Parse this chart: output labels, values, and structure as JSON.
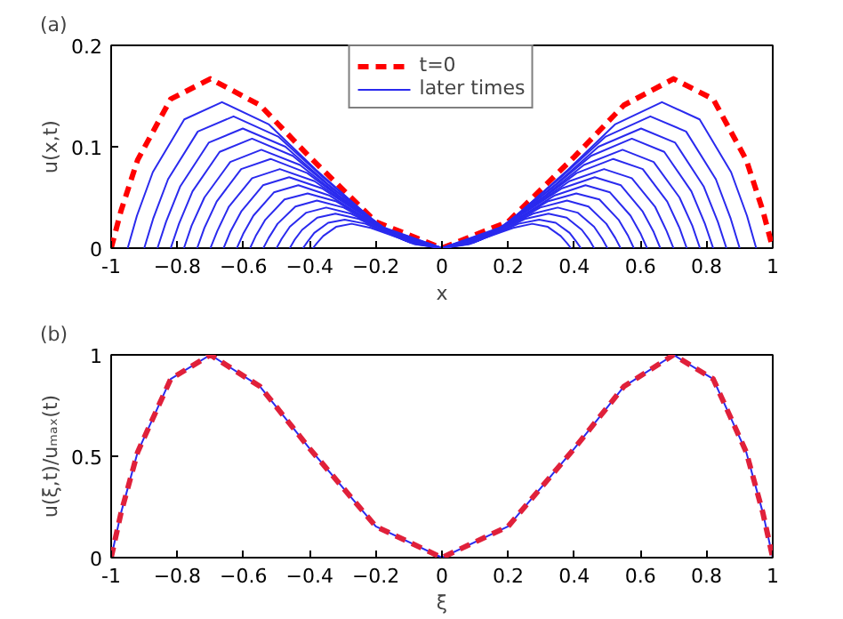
{
  "chart_data": [
    {
      "type": "line",
      "title": "(a)",
      "xlabel": "x",
      "ylabel": "u(x,t)",
      "xlim": [
        -1,
        1
      ],
      "ylim": [
        0,
        0.2
      ],
      "xticks": [
        -1,
        {
          "value": -0.8,
          "label": "−0.8"
        },
        {
          "value": -0.6,
          "label": "−0.6"
        },
        {
          "value": -0.4,
          "label": "−0.4"
        },
        {
          "value": -0.2,
          "label": "−0.2"
        },
        0,
        0.2,
        0.4,
        0.6,
        0.8,
        1
      ],
      "yticks": [
        0,
        0.1,
        0.2
      ],
      "grid": false,
      "legend": "top",
      "marker": "none",
      "series": [
        {
          "name": "t=0",
          "color": "#ff0000",
          "line_style": "dashed",
          "x": [
            -1,
            -0.97,
            -0.92,
            -0.82,
            -0.7,
            -0.55,
            -0.4,
            -0.2,
            0,
            0.2,
            0.4,
            0.55,
            0.7,
            0.82,
            0.92,
            0.97,
            1
          ],
          "values": [
            0,
            0.037,
            0.087,
            0.147,
            0.167,
            0.141,
            0.09,
            0.026,
            0,
            0.026,
            0.09,
            0.141,
            0.167,
            0.147,
            0.087,
            0.037,
            0
          ]
        },
        {
          "name": "later times",
          "color": "#2a2aee",
          "line_style": "solid",
          "x": [
            -0.95,
            -0.922,
            -0.874,
            -0.779,
            -0.665,
            -0.523,
            -0.38,
            -0.19,
            0,
            0.19,
            0.38,
            0.523,
            0.665,
            0.779,
            0.874,
            0.922,
            0.95
          ],
          "values": [
            0,
            0.032,
            0.075,
            0.127,
            0.144,
            0.122,
            0.077,
            0.022,
            0,
            0.022,
            0.077,
            0.122,
            0.144,
            0.127,
            0.075,
            0.032,
            0
          ]
        },
        {
          "color": "#2a2aee",
          "line_style": "solid",
          "x": [
            -0.9,
            -0.873,
            -0.828,
            -0.738,
            -0.63,
            -0.495,
            -0.36,
            -0.18,
            0,
            0.18,
            0.36,
            0.495,
            0.63,
            0.738,
            0.828,
            0.873,
            0.9
          ],
          "values": [
            0,
            0.029,
            0.068,
            0.115,
            0.13,
            0.11,
            0.07,
            0.02,
            0,
            0.02,
            0.07,
            0.11,
            0.13,
            0.115,
            0.068,
            0.029,
            0
          ]
        },
        {
          "color": "#2a2aee",
          "line_style": "solid",
          "x": [
            -0.86,
            -0.834,
            -0.791,
            -0.705,
            -0.602,
            -0.473,
            -0.344,
            -0.172,
            0,
            0.172,
            0.344,
            0.473,
            0.602,
            0.705,
            0.791,
            0.834,
            0.86
          ],
          "values": [
            0,
            0.026,
            0.061,
            0.104,
            0.118,
            0.1,
            0.063,
            0.018,
            0,
            0.018,
            0.063,
            0.1,
            0.118,
            0.104,
            0.061,
            0.026,
            0
          ]
        },
        {
          "color": "#2a2aee",
          "line_style": "solid",
          "x": [
            -0.82,
            -0.795,
            -0.754,
            -0.672,
            -0.574,
            -0.451,
            -0.328,
            -0.164,
            0,
            0.164,
            0.328,
            0.451,
            0.574,
            0.672,
            0.754,
            0.795,
            0.82
          ],
          "values": [
            0,
            0.024,
            0.056,
            0.095,
            0.108,
            0.091,
            0.058,
            0.017,
            0,
            0.017,
            0.058,
            0.091,
            0.108,
            0.095,
            0.056,
            0.024,
            0
          ]
        },
        {
          "color": "#2a2aee",
          "line_style": "solid",
          "x": [
            -0.78,
            -0.757,
            -0.718,
            -0.64,
            -0.546,
            -0.429,
            -0.312,
            -0.156,
            0,
            0.156,
            0.312,
            0.429,
            0.546,
            0.64,
            0.718,
            0.757,
            0.78
          ],
          "values": [
            0,
            0.022,
            0.05,
            0.085,
            0.097,
            0.082,
            0.052,
            0.015,
            0,
            0.015,
            0.052,
            0.082,
            0.097,
            0.085,
            0.05,
            0.022,
            0
          ]
        },
        {
          "color": "#2a2aee",
          "line_style": "solid",
          "x": [
            -0.74,
            -0.718,
            -0.681,
            -0.607,
            -0.518,
            -0.407,
            -0.296,
            -0.148,
            0,
            0.148,
            0.296,
            0.407,
            0.518,
            0.607,
            0.681,
            0.718,
            0.74
          ],
          "values": [
            0,
            0.02,
            0.046,
            0.078,
            0.088,
            0.074,
            0.047,
            0.014,
            0,
            0.014,
            0.047,
            0.074,
            0.088,
            0.078,
            0.046,
            0.02,
            0
          ]
        },
        {
          "color": "#2a2aee",
          "line_style": "solid",
          "x": [
            -0.7,
            -0.679,
            -0.644,
            -0.574,
            -0.49,
            -0.385,
            -0.28,
            -0.14,
            0,
            0.14,
            0.28,
            0.385,
            0.49,
            0.574,
            0.644,
            0.679,
            0.7
          ],
          "values": [
            0,
            0.017,
            0.041,
            0.069,
            0.078,
            0.066,
            0.042,
            0.012,
            0,
            0.012,
            0.042,
            0.066,
            0.078,
            0.069,
            0.041,
            0.017,
            0
          ]
        },
        {
          "color": "#2a2aee",
          "line_style": "solid",
          "x": [
            -0.66,
            -0.64,
            -0.607,
            -0.541,
            -0.462,
            -0.363,
            -0.264,
            -0.132,
            0,
            0.132,
            0.264,
            0.363,
            0.462,
            0.541,
            0.607,
            0.64,
            0.66
          ],
          "values": [
            0,
            0.016,
            0.036,
            0.062,
            0.07,
            0.059,
            0.038,
            0.011,
            0,
            0.011,
            0.038,
            0.059,
            0.07,
            0.062,
            0.036,
            0.016,
            0
          ]
        },
        {
          "color": "#2a2aee",
          "line_style": "solid",
          "x": [
            -0.62,
            -0.601,
            -0.57,
            -0.508,
            -0.434,
            -0.341,
            -0.248,
            -0.124,
            0,
            0.124,
            0.248,
            0.341,
            0.434,
            0.508,
            0.57,
            0.601,
            0.62
          ],
          "values": [
            0,
            0.014,
            0.032,
            0.055,
            0.062,
            0.052,
            0.033,
            0.01,
            0,
            0.01,
            0.033,
            0.052,
            0.062,
            0.055,
            0.032,
            0.014,
            0
          ]
        },
        {
          "color": "#2a2aee",
          "line_style": "solid",
          "x": [
            -0.58,
            -0.563,
            -0.534,
            -0.476,
            -0.406,
            -0.319,
            -0.232,
            -0.116,
            0,
            0.116,
            0.232,
            0.319,
            0.406,
            0.476,
            0.534,
            0.563,
            0.58
          ],
          "values": [
            0,
            0.012,
            0.028,
            0.048,
            0.054,
            0.046,
            0.029,
            0.008,
            0,
            0.008,
            0.029,
            0.046,
            0.054,
            0.048,
            0.028,
            0.012,
            0
          ]
        },
        {
          "color": "#2a2aee",
          "line_style": "solid",
          "x": [
            -0.54,
            -0.524,
            -0.497,
            -0.443,
            -0.378,
            -0.297,
            -0.216,
            -0.108,
            0,
            0.108,
            0.216,
            0.297,
            0.378,
            0.443,
            0.497,
            0.524,
            0.54
          ],
          "values": [
            0,
            0.01,
            0.024,
            0.041,
            0.047,
            0.04,
            0.025,
            0.007,
            0,
            0.007,
            0.025,
            0.04,
            0.047,
            0.041,
            0.024,
            0.01,
            0
          ]
        },
        {
          "color": "#2a2aee",
          "line_style": "solid",
          "x": [
            -0.5,
            -0.485,
            -0.46,
            -0.41,
            -0.35,
            -0.275,
            -0.2,
            -0.1,
            0,
            0.1,
            0.2,
            0.275,
            0.35,
            0.41,
            0.46,
            0.485,
            0.5
          ],
          "values": [
            0,
            0.009,
            0.021,
            0.035,
            0.04,
            0.034,
            0.022,
            0.006,
            0,
            0.006,
            0.022,
            0.034,
            0.04,
            0.035,
            0.021,
            0.009,
            0
          ]
        },
        {
          "color": "#2a2aee",
          "line_style": "solid",
          "x": [
            -0.46,
            -0.446,
            -0.423,
            -0.377,
            -0.322,
            -0.253,
            -0.184,
            -0.092,
            0,
            0.092,
            0.184,
            0.253,
            0.322,
            0.377,
            0.423,
            0.446,
            0.46
          ],
          "values": [
            0,
            0.008,
            0.018,
            0.03,
            0.034,
            0.029,
            0.018,
            0.005,
            0,
            0.005,
            0.018,
            0.029,
            0.034,
            0.03,
            0.018,
            0.008,
            0
          ]
        },
        {
          "color": "#2a2aee",
          "line_style": "solid",
          "x": [
            -0.42,
            -0.407,
            -0.386,
            -0.344,
            -0.294,
            -0.231,
            -0.168,
            -0.084,
            0,
            0.084,
            0.168,
            0.231,
            0.294,
            0.344,
            0.386,
            0.407,
            0.42
          ],
          "values": [
            0,
            0.006,
            0.015,
            0.025,
            0.028,
            0.024,
            0.015,
            0.004,
            0,
            0.004,
            0.015,
            0.024,
            0.028,
            0.025,
            0.015,
            0.006,
            0
          ]
        },
        {
          "color": "#2a2aee",
          "line_style": "solid",
          "x": [
            -0.39,
            -0.378,
            -0.359,
            -0.32,
            -0.273,
            -0.215,
            -0.156,
            -0.078,
            0,
            0.078,
            0.156,
            0.215,
            0.273,
            0.32,
            0.359,
            0.378,
            0.39
          ],
          "values": [
            0,
            0.005,
            0.012,
            0.021,
            0.024,
            0.02,
            0.013,
            0.004,
            0,
            0.004,
            0.013,
            0.02,
            0.024,
            0.021,
            0.012,
            0.005,
            0
          ]
        }
      ]
    },
    {
      "type": "line",
      "title": "(b)",
      "xlabel": "ξ",
      "ylabel": "u(ξ,t)/uₘₐₓ(t)",
      "xlim": [
        -1,
        1
      ],
      "ylim": [
        0,
        1
      ],
      "xticks": [
        -1,
        {
          "value": -0.8,
          "label": "−0.8"
        },
        {
          "value": -0.6,
          "label": "−0.6"
        },
        {
          "value": -0.4,
          "label": "−0.4"
        },
        {
          "value": -0.2,
          "label": "−0.2"
        },
        0,
        0.2,
        0.4,
        0.6,
        0.8,
        1
      ],
      "yticks": [
        0,
        0.5,
        1
      ],
      "grid": false,
      "legend": false,
      "marker": "none",
      "series": [
        {
          "color": "#2a2aee",
          "line_style": "solid",
          "x": [
            -1,
            -0.97,
            -0.92,
            -0.82,
            -0.7,
            -0.55,
            -0.4,
            -0.2,
            0,
            0.2,
            0.4,
            0.55,
            0.7,
            0.82,
            0.92,
            0.97,
            1
          ],
          "values": [
            0,
            0.222,
            0.52,
            0.881,
            1,
            0.844,
            0.538,
            0.154,
            0,
            0.154,
            0.538,
            0.844,
            1,
            0.881,
            0.52,
            0.222,
            0
          ]
        },
        {
          "color": "#e0203a",
          "line_style": "dashed",
          "x": [
            -1,
            -0.97,
            -0.92,
            -0.82,
            -0.7,
            -0.55,
            -0.4,
            -0.2,
            0,
            0.2,
            0.4,
            0.55,
            0.7,
            0.82,
            0.92,
            0.97,
            1
          ],
          "values": [
            0,
            0.222,
            0.52,
            0.881,
            1,
            0.844,
            0.538,
            0.154,
            0,
            0.154,
            0.538,
            0.844,
            1,
            0.881,
            0.52,
            0.222,
            0
          ]
        }
      ]
    }
  ]
}
